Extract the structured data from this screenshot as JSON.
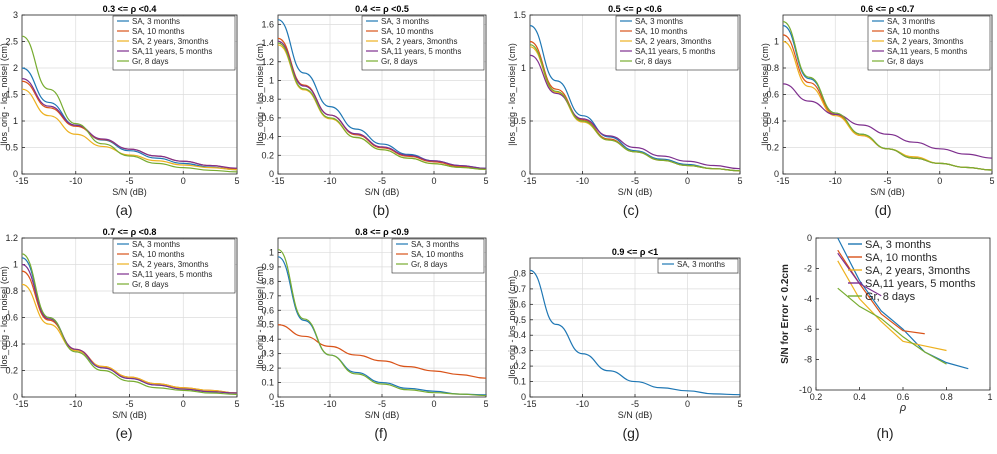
{
  "colors": {
    "blue": "#1f77b4",
    "orange": "#d95319",
    "yellow": "#edb120",
    "purple": "#7e2f8e",
    "green": "#77ac30"
  },
  "chart_data": [
    {
      "type": "line",
      "panel_label": "(a)",
      "title": "0.3 <= ρ <0.4",
      "xlabel": "S/N (dB)",
      "ylabel": "|los_orig - los_noise| (cm)",
      "xlim": [
        -15,
        5
      ],
      "ylim": [
        0,
        3
      ],
      "grid": true,
      "legend": "top-right",
      "xticks": [
        -15,
        -10,
        -5,
        0,
        5
      ],
      "yticks": [
        0,
        0.5,
        1,
        1.5,
        2,
        2.5,
        3
      ],
      "x": [
        -15,
        -12.5,
        -10,
        -7.5,
        -5,
        -2.5,
        0,
        2.5,
        5
      ],
      "series": [
        {
          "name": "SA, 3 months",
          "color": "blue",
          "values": [
            2.0,
            1.35,
            0.92,
            0.64,
            0.44,
            0.3,
            0.2,
            0.13,
            0.08
          ]
        },
        {
          "name": "SA, 10 months",
          "color": "orange",
          "values": [
            1.75,
            1.25,
            0.9,
            0.65,
            0.47,
            0.34,
            0.24,
            0.16,
            0.1
          ]
        },
        {
          "name": "SA, 2 years, 3months",
          "color": "yellow",
          "values": [
            1.6,
            1.1,
            0.75,
            0.52,
            0.36,
            0.25,
            0.17,
            0.12,
            0.08
          ]
        },
        {
          "name": "SA,11 years, 5 months",
          "color": "purple",
          "values": [
            1.8,
            1.28,
            0.92,
            0.66,
            0.47,
            0.34,
            0.24,
            0.16,
            0.11
          ]
        },
        {
          "name": "Gr, 8 days",
          "color": "green",
          "values": [
            2.6,
            1.6,
            0.95,
            0.57,
            0.34,
            0.2,
            0.12,
            0.07,
            0.04
          ]
        }
      ]
    },
    {
      "type": "line",
      "panel_label": "(b)",
      "title": "0.4 <= ρ <0.5",
      "xlabel": "S/N (dB)",
      "ylabel": "|los_orig - los_noise| (cm)",
      "xlim": [
        -15,
        5
      ],
      "ylim": [
        0,
        1.7
      ],
      "grid": true,
      "legend": "top-right",
      "xticks": [
        -15,
        -10,
        -5,
        0,
        5
      ],
      "yticks": [
        0,
        0.2,
        0.4,
        0.6,
        0.8,
        1,
        1.2,
        1.4,
        1.6
      ],
      "x": [
        -15,
        -12.5,
        -10,
        -7.5,
        -5,
        -2.5,
        0,
        2.5,
        5
      ],
      "series": [
        {
          "name": "SA, 3 months",
          "color": "blue",
          "values": [
            1.65,
            1.08,
            0.72,
            0.48,
            0.32,
            0.21,
            0.14,
            0.09,
            0.06
          ]
        },
        {
          "name": "SA, 10 months",
          "color": "orange",
          "values": [
            1.45,
            0.95,
            0.63,
            0.42,
            0.28,
            0.19,
            0.13,
            0.08,
            0.05
          ]
        },
        {
          "name": "SA, 2 years, 3months",
          "color": "yellow",
          "values": [
            1.38,
            0.9,
            0.59,
            0.39,
            0.26,
            0.17,
            0.11,
            0.07,
            0.05
          ]
        },
        {
          "name": "SA,11 years, 5 months",
          "color": "purple",
          "values": [
            1.42,
            0.94,
            0.63,
            0.43,
            0.29,
            0.2,
            0.14,
            0.09,
            0.06
          ]
        },
        {
          "name": "Gr, 8 days",
          "color": "green",
          "values": [
            1.4,
            0.91,
            0.6,
            0.39,
            0.26,
            0.17,
            0.11,
            0.07,
            0.05
          ]
        }
      ]
    },
    {
      "type": "line",
      "panel_label": "(c)",
      "title": "0.5 <= ρ <0.6",
      "xlabel": "S/N (dB)",
      "ylabel": "|los_orig - los_noise| (cm)",
      "xlim": [
        -15,
        5
      ],
      "ylim": [
        0,
        1.5
      ],
      "grid": true,
      "legend": "top-right",
      "xticks": [
        -15,
        -10,
        -5,
        0,
        5
      ],
      "yticks": [
        0,
        0.5,
        1,
        1.5
      ],
      "x": [
        -15,
        -12.5,
        -10,
        -7.5,
        -5,
        -2.5,
        0,
        2.5,
        5
      ],
      "series": [
        {
          "name": "SA, 3 months",
          "color": "blue",
          "values": [
            1.4,
            0.88,
            0.55,
            0.35,
            0.22,
            0.14,
            0.09,
            0.05,
            0.03
          ]
        },
        {
          "name": "SA, 10 months",
          "color": "orange",
          "values": [
            1.25,
            0.8,
            0.51,
            0.33,
            0.21,
            0.13,
            0.08,
            0.05,
            0.03
          ]
        },
        {
          "name": "SA, 2 years, 3months",
          "color": "yellow",
          "values": [
            1.2,
            0.77,
            0.49,
            0.32,
            0.21,
            0.13,
            0.08,
            0.05,
            0.03
          ]
        },
        {
          "name": "SA,11 years, 5 months",
          "color": "purple",
          "values": [
            1.12,
            0.76,
            0.52,
            0.36,
            0.25,
            0.17,
            0.12,
            0.08,
            0.05
          ]
        },
        {
          "name": "Gr, 8 days",
          "color": "green",
          "values": [
            1.22,
            0.78,
            0.5,
            0.32,
            0.21,
            0.13,
            0.08,
            0.05,
            0.03
          ]
        }
      ]
    },
    {
      "type": "line",
      "panel_label": "(d)",
      "title": "0.6 <= ρ <0.7",
      "xlabel": "S/N (dB)",
      "ylabel": "|los_orig - los_noise| (cm)",
      "xlim": [
        -15,
        5
      ],
      "ylim": [
        0,
        1.2
      ],
      "grid": true,
      "legend": "top-right",
      "xticks": [
        -15,
        -10,
        -5,
        0,
        5
      ],
      "yticks": [
        0,
        0.2,
        0.4,
        0.6,
        0.8,
        1
      ],
      "x": [
        -15,
        -12.5,
        -10,
        -7.5,
        -5,
        -2.5,
        0,
        2.5,
        5
      ],
      "series": [
        {
          "name": "SA, 3 months",
          "color": "blue",
          "values": [
            1.12,
            0.72,
            0.46,
            0.3,
            0.19,
            0.12,
            0.08,
            0.05,
            0.03
          ]
        },
        {
          "name": "SA, 10 months",
          "color": "orange",
          "values": [
            1.05,
            0.69,
            0.45,
            0.29,
            0.19,
            0.12,
            0.08,
            0.05,
            0.03
          ]
        },
        {
          "name": "SA, 2 years, 3months",
          "color": "yellow",
          "values": [
            1.0,
            0.66,
            0.44,
            0.29,
            0.19,
            0.13,
            0.08,
            0.05,
            0.03
          ]
        },
        {
          "name": "SA,11 years, 5 months",
          "color": "purple",
          "values": [
            0.68,
            0.55,
            0.45,
            0.37,
            0.3,
            0.24,
            0.19,
            0.15,
            0.12
          ]
        },
        {
          "name": "Gr, 8 days",
          "color": "green",
          "values": [
            1.15,
            0.73,
            0.46,
            0.3,
            0.19,
            0.12,
            0.08,
            0.05,
            0.03
          ]
        }
      ]
    },
    {
      "type": "line",
      "panel_label": "(e)",
      "title": "0.7 <= ρ <0.8",
      "xlabel": "S/N (dB)",
      "ylabel": "|los_orig - los_noise| (cm)",
      "xlim": [
        -15,
        5
      ],
      "ylim": [
        0,
        1.2
      ],
      "grid": true,
      "legend": "top-right",
      "xticks": [
        -15,
        -10,
        -5,
        0,
        5
      ],
      "yticks": [
        0,
        0.2,
        0.4,
        0.6,
        0.8,
        1,
        1.2
      ],
      "x": [
        -15,
        -12.5,
        -10,
        -7.5,
        -5,
        -2.5,
        0,
        2.5,
        5
      ],
      "series": [
        {
          "name": "SA, 3 months",
          "color": "blue",
          "values": [
            1.05,
            0.6,
            0.35,
            0.22,
            0.14,
            0.09,
            0.06,
            0.04,
            0.03
          ]
        },
        {
          "name": "SA, 10 months",
          "color": "orange",
          "values": [
            0.95,
            0.58,
            0.36,
            0.23,
            0.15,
            0.1,
            0.07,
            0.05,
            0.03
          ]
        },
        {
          "name": "SA, 2 years, 3months",
          "color": "yellow",
          "values": [
            0.85,
            0.55,
            0.35,
            0.23,
            0.15,
            0.1,
            0.07,
            0.05,
            0.03
          ]
        },
        {
          "name": "SA,11 years, 5 months",
          "color": "purple",
          "values": [
            1.0,
            0.59,
            0.36,
            0.22,
            0.14,
            0.09,
            0.06,
            0.04,
            0.03
          ]
        },
        {
          "name": "Gr, 8 days",
          "color": "green",
          "values": [
            1.08,
            0.6,
            0.34,
            0.2,
            0.12,
            0.07,
            0.05,
            0.03,
            0.02
          ]
        }
      ]
    },
    {
      "type": "line",
      "panel_label": "(f)",
      "title": "0.8 <= ρ <0.9",
      "xlabel": "S/N (dB)",
      "ylabel": "|los_orig - los_noise| (cm)",
      "xlim": [
        -15,
        5
      ],
      "ylim": [
        0,
        1.1
      ],
      "grid": true,
      "legend": "top-right",
      "xticks": [
        -15,
        -10,
        -5,
        0,
        5
      ],
      "yticks": [
        0,
        0.1,
        0.2,
        0.3,
        0.4,
        0.5,
        0.6,
        0.7,
        0.8,
        0.9,
        1
      ],
      "x": [
        -15,
        -12.5,
        -10,
        -7.5,
        -5,
        -2.5,
        0,
        2.5,
        5
      ],
      "series": [
        {
          "name": "SA, 3 months",
          "color": "blue",
          "values": [
            0.97,
            0.53,
            0.29,
            0.17,
            0.1,
            0.06,
            0.04,
            0.02,
            0.015
          ]
        },
        {
          "name": "SA, 10 months",
          "color": "orange",
          "values": [
            0.5,
            0.42,
            0.35,
            0.29,
            0.25,
            0.21,
            0.18,
            0.155,
            0.13
          ]
        },
        {
          "name": "Gr, 8 days",
          "color": "green",
          "values": [
            1.02,
            0.54,
            0.29,
            0.16,
            0.09,
            0.05,
            0.03,
            0.02,
            0.01
          ]
        }
      ]
    },
    {
      "type": "line",
      "panel_label": "(g)",
      "title": "0.9 <= ρ <1",
      "xlabel": "S/N (dB)",
      "ylabel": "|los_orig - los_noise| (cm)",
      "xlim": [
        -15,
        5
      ],
      "ylim": [
        0,
        0.9
      ],
      "grid": true,
      "legend": "top-right",
      "xticks": [
        -15,
        -10,
        -5,
        0,
        5
      ],
      "yticks": [
        0,
        0.1,
        0.2,
        0.3,
        0.4,
        0.5,
        0.6,
        0.7,
        0.8
      ],
      "x": [
        -15,
        -12.5,
        -10,
        -7.5,
        -5,
        -2.5,
        0,
        2.5,
        5
      ],
      "series": [
        {
          "name": "SA, 3 months",
          "color": "blue",
          "values": [
            0.82,
            0.47,
            0.28,
            0.17,
            0.1,
            0.06,
            0.04,
            0.02,
            0.015
          ]
        }
      ]
    },
    {
      "type": "line",
      "panel_label": "(h)",
      "title": "",
      "xlabel": "ρ",
      "ylabel": "S/N for Error < 0.2cm",
      "xlim": [
        0.2,
        1
      ],
      "ylim": [
        -10,
        0
      ],
      "grid": false,
      "legend": "top-right",
      "xticks": [
        0.2,
        0.4,
        0.6,
        0.8,
        1
      ],
      "yticks": [
        -10,
        -8,
        -6,
        -4,
        -2,
        0
      ],
      "series": [
        {
          "name": "SA, 3 months",
          "color": "blue",
          "x": [
            0.3,
            0.4,
            0.5,
            0.6,
            0.7,
            0.8,
            0.9
          ],
          "values": [
            0,
            -2.8,
            -4.8,
            -6,
            -7.5,
            -8.2,
            -8.6
          ]
        },
        {
          "name": "SA, 10 months",
          "color": "orange",
          "x": [
            0.3,
            0.4,
            0.5,
            0.6,
            0.7
          ],
          "values": [
            -0.8,
            -3,
            -5,
            -6.1,
            -6.3
          ]
        },
        {
          "name": "SA, 2 years, 3months",
          "color": "yellow",
          "x": [
            0.3,
            0.4,
            0.5,
            0.6,
            0.7,
            0.8
          ],
          "values": [
            -1.5,
            -4,
            -5.5,
            -6.8,
            -7.1,
            -7.4
          ]
        },
        {
          "name": "SA,11 years, 5 months",
          "color": "purple",
          "x": [
            0.3,
            0.4,
            0.5
          ],
          "values": [
            -1,
            -3,
            -3.8
          ]
        },
        {
          "name": "Gr, 8 days",
          "color": "green",
          "x": [
            0.3,
            0.4,
            0.5,
            0.6,
            0.7,
            0.8
          ],
          "values": [
            -3.3,
            -4.5,
            -5.3,
            -6.5,
            -7.5,
            -8.3
          ]
        }
      ],
      "legend_names": [
        "SA, 3 months",
        "SA, 10 months",
        "SA, 2 years, 3months",
        "SA,11 years, 5 months",
        "Gr, 8 days"
      ]
    }
  ]
}
